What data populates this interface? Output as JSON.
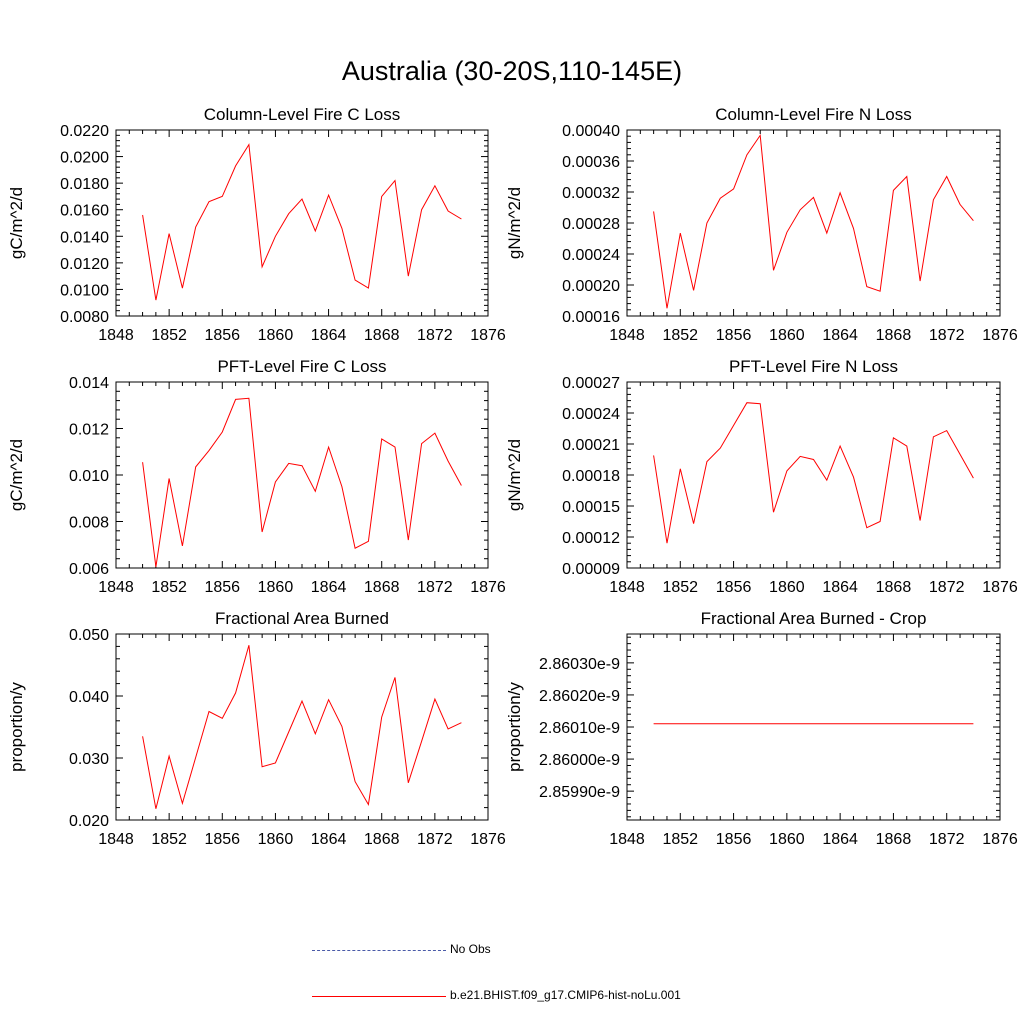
{
  "title": "Australia (30-20S,110-145E)",
  "colors": {
    "model_line": "#ff0000",
    "obs_line": "#4a5aa8",
    "axis": "#000000"
  },
  "legend": [
    {
      "label": "No Obs",
      "style": "dashed",
      "color": "#4a5aa8"
    },
    {
      "label": "b.e21.BHIST.f09_g17.CMIP6-hist-noLu.001",
      "style": "solid",
      "color": "#ff0000"
    }
  ],
  "chart_data": [
    {
      "type": "line",
      "title": "Column-Level Fire C Loss",
      "ylabel": "gC/m^2/d",
      "xlim": [
        1848,
        1876
      ],
      "xticks": [
        1848,
        1852,
        1856,
        1860,
        1864,
        1868,
        1872,
        1876
      ],
      "ylim": [
        0.008,
        0.022
      ],
      "yticks": [
        0.008,
        0.01,
        0.012,
        0.014,
        0.016,
        0.018,
        0.02,
        0.022
      ],
      "ytick_labels": [
        "0.0080",
        "0.0100",
        "0.0120",
        "0.0140",
        "0.0160",
        "0.0180",
        "0.0200",
        "0.0220"
      ],
      "x": [
        1850,
        1851,
        1852,
        1853,
        1854,
        1855,
        1856,
        1857,
        1858,
        1859,
        1860,
        1861,
        1862,
        1863,
        1864,
        1865,
        1866,
        1867,
        1868,
        1869,
        1870,
        1871,
        1872,
        1873,
        1874
      ],
      "series": [
        {
          "name": "b.e21.BHIST.f09_g17.CMIP6-hist-noLu.001",
          "values": [
            0.0156,
            0.0092,
            0.0142,
            0.0101,
            0.0147,
            0.0166,
            0.017,
            0.0193,
            0.0209,
            0.0117,
            0.014,
            0.0157,
            0.0168,
            0.0144,
            0.0171,
            0.0146,
            0.0107,
            0.0101,
            0.017,
            0.0182,
            0.011,
            0.016,
            0.0178,
            0.0159,
            0.0153
          ]
        }
      ]
    },
    {
      "type": "line",
      "title": "Column-Level Fire N Loss",
      "ylabel": "gN/m^2/d",
      "xlim": [
        1848,
        1876
      ],
      "xticks": [
        1848,
        1852,
        1856,
        1860,
        1864,
        1868,
        1872,
        1876
      ],
      "ylim": [
        0.00016,
        0.0004
      ],
      "yticks": [
        0.00016,
        0.0002,
        0.00024,
        0.00028,
        0.00032,
        0.00036,
        0.0004
      ],
      "ytick_labels": [
        "0.00016",
        "0.00020",
        "0.00024",
        "0.00028",
        "0.00032",
        "0.00036",
        "0.00040"
      ],
      "x": [
        1850,
        1851,
        1852,
        1853,
        1854,
        1855,
        1856,
        1857,
        1858,
        1859,
        1860,
        1861,
        1862,
        1863,
        1864,
        1865,
        1866,
        1867,
        1868,
        1869,
        1870,
        1871,
        1872,
        1873,
        1874
      ],
      "series": [
        {
          "name": "b.e21.BHIST.f09_g17.CMIP6-hist-noLu.001",
          "values": [
            0.000295,
            0.00017,
            0.000267,
            0.000193,
            0.00028,
            0.000312,
            0.000324,
            0.000368,
            0.000393,
            0.000219,
            0.000268,
            0.000297,
            0.000313,
            0.000267,
            0.000319,
            0.000273,
            0.000198,
            0.000192,
            0.000322,
            0.00034,
            0.000205,
            0.00031,
            0.00034,
            0.000304,
            0.000283
          ]
        }
      ]
    },
    {
      "type": "line",
      "title": "PFT-Level Fire C Loss",
      "ylabel": "gC/m^2/d",
      "xlim": [
        1848,
        1876
      ],
      "xticks": [
        1848,
        1852,
        1856,
        1860,
        1864,
        1868,
        1872,
        1876
      ],
      "ylim": [
        0.006,
        0.014
      ],
      "yticks": [
        0.006,
        0.008,
        0.01,
        0.012,
        0.014
      ],
      "ytick_labels": [
        "0.006",
        "0.008",
        "0.010",
        "0.012",
        "0.014"
      ],
      "x": [
        1850,
        1851,
        1852,
        1853,
        1854,
        1855,
        1856,
        1857,
        1858,
        1859,
        1860,
        1861,
        1862,
        1863,
        1864,
        1865,
        1866,
        1867,
        1868,
        1869,
        1870,
        1871,
        1872,
        1873,
        1874
      ],
      "series": [
        {
          "name": "b.e21.BHIST.f09_g17.CMIP6-hist-noLu.001",
          "values": [
            0.01055,
            0.00605,
            0.00985,
            0.00695,
            0.01035,
            0.01105,
            0.01185,
            0.01325,
            0.0133,
            0.00755,
            0.0097,
            0.0105,
            0.0104,
            0.0093,
            0.0112,
            0.0095,
            0.00685,
            0.00715,
            0.01155,
            0.0112,
            0.0072,
            0.01135,
            0.0118,
            0.0106,
            0.00955
          ]
        }
      ]
    },
    {
      "type": "line",
      "title": "PFT-Level Fire N Loss",
      "ylabel": "gN/m^2/d",
      "xlim": [
        1848,
        1876
      ],
      "xticks": [
        1848,
        1852,
        1856,
        1860,
        1864,
        1868,
        1872,
        1876
      ],
      "ylim": [
        9e-05,
        0.00027
      ],
      "yticks": [
        9e-05,
        0.00012,
        0.00015,
        0.00018,
        0.00021,
        0.00024,
        0.00027
      ],
      "ytick_labels": [
        "0.00009",
        "0.00012",
        "0.00015",
        "0.00018",
        "0.00021",
        "0.00024",
        "0.00027"
      ],
      "x": [
        1850,
        1851,
        1852,
        1853,
        1854,
        1855,
        1856,
        1857,
        1858,
        1859,
        1860,
        1861,
        1862,
        1863,
        1864,
        1865,
        1866,
        1867,
        1868,
        1869,
        1870,
        1871,
        1872,
        1873,
        1874
      ],
      "series": [
        {
          "name": "b.e21.BHIST.f09_g17.CMIP6-hist-noLu.001",
          "values": [
            0.000199,
            0.000114,
            0.000186,
            0.000133,
            0.000193,
            0.000206,
            0.000228,
            0.00025,
            0.000249,
            0.000144,
            0.000184,
            0.000198,
            0.000195,
            0.000175,
            0.000208,
            0.000178,
            0.000129,
            0.000135,
            0.000216,
            0.000208,
            0.000136,
            0.000217,
            0.000223,
            0.0002,
            0.000177
          ]
        }
      ]
    },
    {
      "type": "line",
      "title": "Fractional Area Burned",
      "ylabel": "proportion/y",
      "xlim": [
        1848,
        1876
      ],
      "xticks": [
        1848,
        1852,
        1856,
        1860,
        1864,
        1868,
        1872,
        1876
      ],
      "ylim": [
        0.02,
        0.05
      ],
      "yticks": [
        0.02,
        0.03,
        0.04,
        0.05
      ],
      "ytick_labels": [
        "0.020",
        "0.030",
        "0.040",
        "0.050"
      ],
      "x": [
        1850,
        1851,
        1852,
        1853,
        1854,
        1855,
        1856,
        1857,
        1858,
        1859,
        1860,
        1861,
        1862,
        1863,
        1864,
        1865,
        1866,
        1867,
        1868,
        1869,
        1870,
        1871,
        1872,
        1873,
        1874
      ],
      "series": [
        {
          "name": "b.e21.BHIST.f09_g17.CMIP6-hist-noLu.001",
          "values": [
            0.0335,
            0.0218,
            0.0303,
            0.0227,
            0.0301,
            0.0375,
            0.0364,
            0.0405,
            0.0482,
            0.0286,
            0.0292,
            0.0342,
            0.0392,
            0.0339,
            0.0394,
            0.0351,
            0.0262,
            0.0225,
            0.0366,
            0.043,
            0.026,
            0.0327,
            0.0395,
            0.0347,
            0.0357
          ]
        }
      ]
    },
    {
      "type": "line",
      "title": "Fractional Area Burned - Crop",
      "ylabel": "proportion/y",
      "xlim": [
        1848,
        1876
      ],
      "xticks": [
        1848,
        1852,
        1856,
        1860,
        1864,
        1868,
        1872,
        1876
      ],
      "ylim": [
        2.85981e-09,
        2.86039e-09
      ],
      "yticks": [
        2.8599e-09,
        2.86e-09,
        2.8601e-09,
        2.8602e-09,
        2.8603e-09
      ],
      "ytick_labels": [
        "2.85990e-9",
        "2.86000e-9",
        "2.86010e-9",
        "2.86020e-9",
        "2.86030e-9"
      ],
      "x": [
        1850,
        1851,
        1852,
        1853,
        1854,
        1855,
        1856,
        1857,
        1858,
        1859,
        1860,
        1861,
        1862,
        1863,
        1864,
        1865,
        1866,
        1867,
        1868,
        1869,
        1870,
        1871,
        1872,
        1873,
        1874
      ],
      "series": [
        {
          "name": "b.e21.BHIST.f09_g17.CMIP6-hist-noLu.001",
          "values": [
            2.86011e-09,
            2.86011e-09,
            2.86011e-09,
            2.86011e-09,
            2.86011e-09,
            2.86011e-09,
            2.86011e-09,
            2.86011e-09,
            2.86011e-09,
            2.86011e-09,
            2.86011e-09,
            2.86011e-09,
            2.86011e-09,
            2.86011e-09,
            2.86011e-09,
            2.86011e-09,
            2.86011e-09,
            2.86011e-09,
            2.86011e-09,
            2.86011e-09,
            2.86011e-09,
            2.86011e-09,
            2.86011e-09,
            2.86011e-09,
            2.86011e-09
          ]
        }
      ]
    }
  ]
}
